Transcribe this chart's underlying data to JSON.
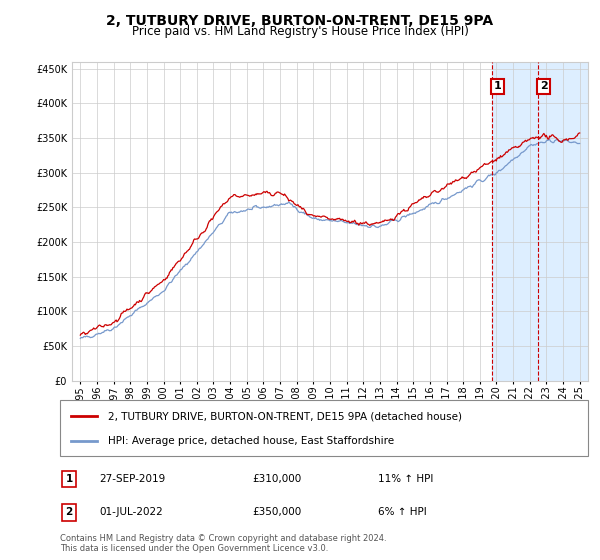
{
  "title": "2, TUTBURY DRIVE, BURTON-ON-TRENT, DE15 9PA",
  "subtitle": "Price paid vs. HM Land Registry's House Price Index (HPI)",
  "red_label": "2, TUTBURY DRIVE, BURTON-ON-TRENT, DE15 9PA (detached house)",
  "blue_label": "HPI: Average price, detached house, East Staffordshire",
  "footer": "Contains HM Land Registry data © Crown copyright and database right 2024.\nThis data is licensed under the Open Government Licence v3.0.",
  "annotation1": {
    "num": "1",
    "date": "27-SEP-2019",
    "price": "£310,000",
    "hpi": "11% ↑ HPI",
    "x_year": 2019.75,
    "y_val": 310000
  },
  "annotation2": {
    "num": "2",
    "date": "01-JUL-2022",
    "price": "£350,000",
    "hpi": "6% ↑ HPI",
    "x_year": 2022.5,
    "y_val": 350000
  },
  "shade_x_start": 2019.75,
  "shade_x_end": 2025.5,
  "ylim": [
    0,
    460000
  ],
  "yticks": [
    0,
    50000,
    100000,
    150000,
    200000,
    250000,
    300000,
    350000,
    400000,
    450000
  ],
  "ytick_labels": [
    "£0",
    "£50K",
    "£100K",
    "£150K",
    "£200K",
    "£250K",
    "£300K",
    "£350K",
    "£400K",
    "£450K"
  ],
  "xlim_start": 1994.5,
  "xlim_end": 2025.5,
  "xticks": [
    1995,
    1996,
    1997,
    1998,
    1999,
    2000,
    2001,
    2002,
    2003,
    2004,
    2005,
    2006,
    2007,
    2008,
    2009,
    2010,
    2011,
    2012,
    2013,
    2014,
    2015,
    2016,
    2017,
    2018,
    2019,
    2020,
    2021,
    2022,
    2023,
    2024,
    2025
  ],
  "red_color": "#cc0000",
  "blue_color": "#7799cc",
  "shade_color": "#ddeeff",
  "grid_color": "#cccccc",
  "title_fontsize": 10,
  "subtitle_fontsize": 8.5,
  "tick_fontsize": 7
}
